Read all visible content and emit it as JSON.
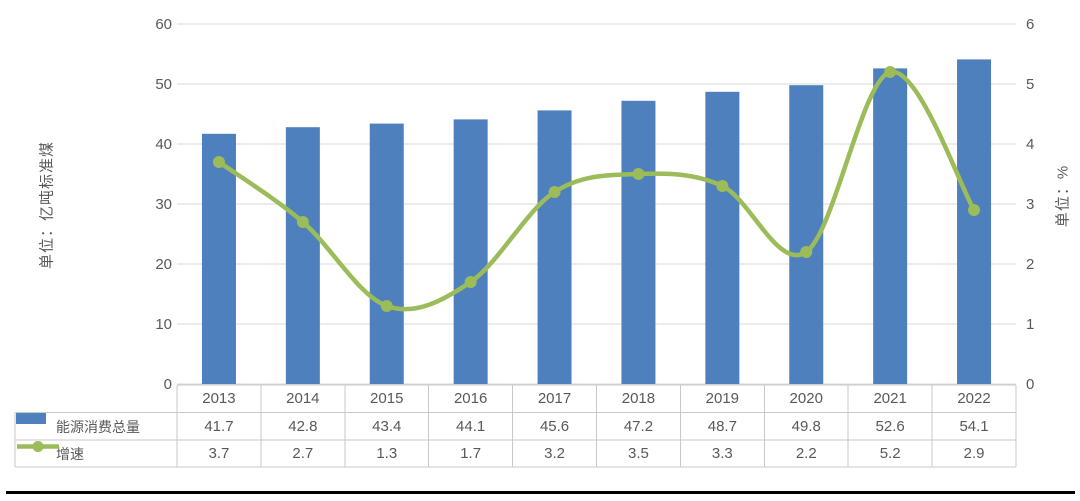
{
  "chart_data": {
    "type": "bar+line combo with data table",
    "categories": [
      "2013",
      "2014",
      "2015",
      "2016",
      "2017",
      "2018",
      "2019",
      "2020",
      "2021",
      "2022"
    ],
    "series": [
      {
        "name": "能源消费总量",
        "type": "bar",
        "axis": "left",
        "color": "#4E80BD",
        "values": [
          41.7,
          42.8,
          43.4,
          44.1,
          45.6,
          47.2,
          48.7,
          49.8,
          52.6,
          54.1
        ]
      },
      {
        "name": "增速",
        "type": "line",
        "axis": "right",
        "color": "#9CBB59",
        "smooth": true,
        "values": [
          3.7,
          2.7,
          1.3,
          1.7,
          3.2,
          3.5,
          3.3,
          2.2,
          5.2,
          2.9
        ]
      }
    ],
    "left_axis": {
      "title": "单位：亿吨标准煤",
      "min": 0,
      "max": 60,
      "step": 10,
      "tick_labels": [
        "60",
        "50",
        "40",
        "30",
        "20",
        "10",
        "0"
      ]
    },
    "right_axis": {
      "title": "单位：%",
      "min": 0,
      "max": 6,
      "step": 1,
      "tick_labels": [
        "6",
        "5",
        "4",
        "3",
        "2",
        "1",
        "0"
      ]
    },
    "grid": true,
    "legend_position": "data-table-left",
    "title": "",
    "xlabel": ""
  },
  "colors": {
    "bar": "#4E80BD",
    "line": "#9CBB59",
    "gridline": "#D9D9D9",
    "table_border": "#C9C9C9",
    "text": "#595959",
    "bottom_rule": "#000000"
  }
}
